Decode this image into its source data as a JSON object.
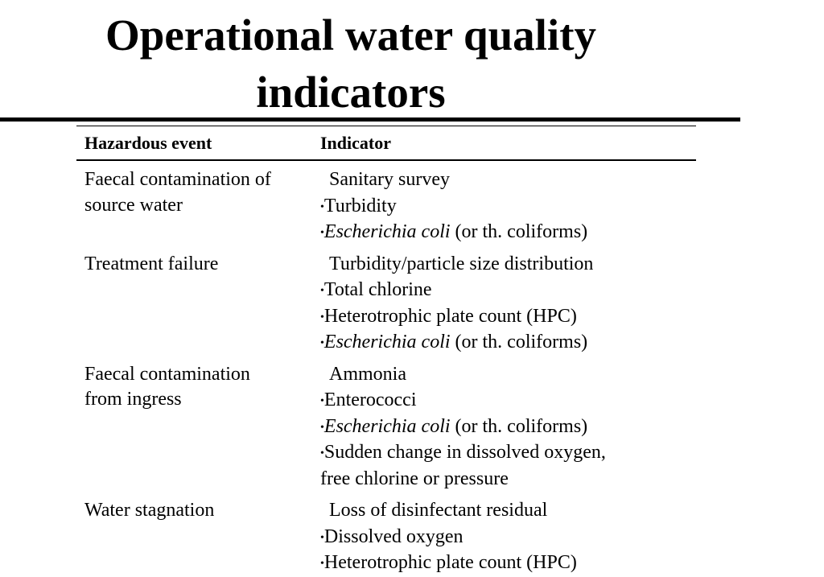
{
  "title_line1": "Operational water quality",
  "title_line2": "indicators",
  "table": {
    "headers": {
      "hazard": "Hazardous event",
      "indicator": "Indicator"
    },
    "rows": [
      {
        "hazard_lines": [
          "Faecal contamination of",
          "source water"
        ],
        "indicators": [
          {
            "bullet": "",
            "italic": "",
            "text": "Sanitary survey"
          },
          {
            "bullet": "•",
            "italic": "",
            "text": "Turbidity"
          },
          {
            "bullet": "•",
            "italic": "Escherichia coli",
            "text": " (or th. coliforms)"
          }
        ]
      },
      {
        "hazard_lines": [
          "Treatment failure"
        ],
        "indicators": [
          {
            "bullet": "",
            "italic": "",
            "text": "Turbidity/particle size distribution"
          },
          {
            "bullet": "•",
            "italic": "",
            "text": "Total chlorine"
          },
          {
            "bullet": "•",
            "italic": "",
            "text": "Heterotrophic plate count (HPC)"
          },
          {
            "bullet": "•",
            "italic": "Escherichia coli",
            "text": " (or th. coliforms)"
          }
        ]
      },
      {
        "hazard_lines": [
          "Faecal contamination",
          "from ingress"
        ],
        "indicators": [
          {
            "bullet": "",
            "italic": "",
            "text": "Ammonia"
          },
          {
            "bullet": "•",
            "italic": "",
            "text": "Enterococci"
          },
          {
            "bullet": "•",
            "italic": "Escherichia coli",
            "text": " (or th. coliforms)"
          },
          {
            "bullet": "•",
            "italic": "",
            "text": "Sudden change in dissolved oxygen,"
          },
          {
            "bullet": "",
            "italic": "",
            "text": "free chlorine or pressure"
          }
        ]
      },
      {
        "hazard_lines": [
          "Water stagnation"
        ],
        "indicators": [
          {
            "bullet": "",
            "italic": "",
            "text": "Loss of disinfectant residual"
          },
          {
            "bullet": "•",
            "italic": "",
            "text": "Dissolved oxygen"
          },
          {
            "bullet": "•",
            "italic": "",
            "text": "Heterotrophic plate count (HPC)"
          }
        ]
      }
    ]
  }
}
